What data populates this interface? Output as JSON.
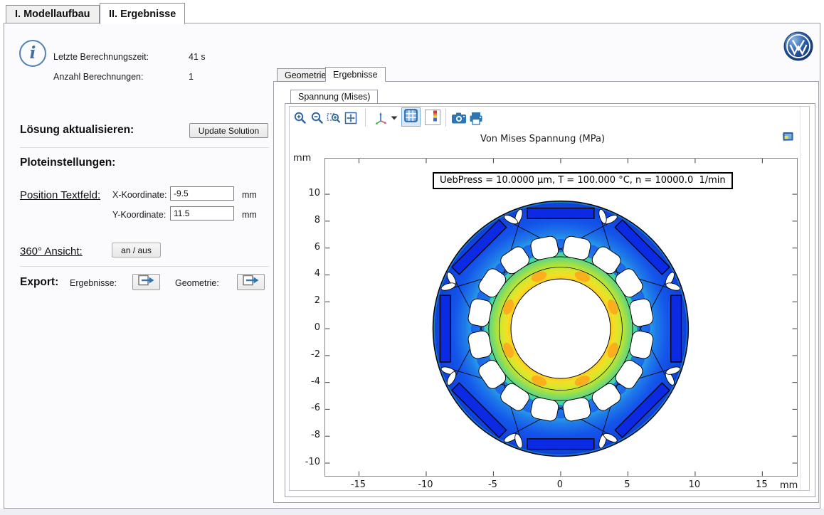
{
  "window": {
    "tabs": [
      {
        "label": "I. Modellaufbau",
        "active": false
      },
      {
        "label": "II. Ergebnisse",
        "active": true
      }
    ],
    "logo_name": "volkswagen-logo"
  },
  "sidebar": {
    "info_rows": [
      {
        "label": "Letzte Berechnungszeit:",
        "value": "41 s"
      },
      {
        "label": "Anzahl Berechnungen:",
        "value": "1"
      }
    ],
    "solution": {
      "heading": "Lösung aktualisieren:",
      "button_label": "Update Solution"
    },
    "plot_settings_heading": "Ploteinstellungen:",
    "textfield_position": {
      "heading": "Position Textfeld:",
      "x_field": {
        "label": "X-Koordinate:",
        "value": "-9.5",
        "unit": "mm"
      },
      "y_field": {
        "label": "Y-Koordinate:",
        "value": "11.5",
        "unit": "mm"
      }
    },
    "view360": {
      "heading": "360° Ansicht:",
      "button_label": "an / aus"
    },
    "export": {
      "heading": "Export:",
      "results_label": "Ergebnisse:",
      "geometry_label": "Geometrie:"
    }
  },
  "results_panel": {
    "tabs": [
      {
        "label": "Geometrie",
        "active": false
      },
      {
        "label": "Ergebnisse",
        "active": true
      }
    ],
    "plot_tabs": [
      {
        "label": "Spannung (Mises)",
        "active": true
      }
    ],
    "toolbar_icons": [
      "zoom-in",
      "zoom-out",
      "zoom-to-box",
      "zoom-extents",
      "view-orientation",
      "orientation-dropdown",
      "grid",
      "color-legend",
      "snapshot-camera",
      "print"
    ]
  },
  "chart_data": {
    "type": "heatmap",
    "title": "Von Mises Spannung (MPa)",
    "annotation": "UebPress = 10.0000 µm, T = 100.000 °C, n = 10000.0  1/min",
    "x_unit": "mm",
    "y_unit": "mm",
    "x_ticks": [
      -15,
      -10,
      -5,
      0,
      5,
      10,
      15
    ],
    "y_ticks": [
      10,
      8,
      6,
      4,
      2,
      0,
      -2,
      -4,
      -6,
      -8,
      -10
    ],
    "xlim": [
      -17.5,
      17.6
    ],
    "ylim": [
      -10.95,
      12.65
    ],
    "description": "FEM von Mises stress field of an 8-pole PM rotor lamination: blue (low stress) outer ring with 8 buried magnet slots and 16 cooling holes, yellow-orange (high stress) ring around the shaft bore",
    "geometry": {
      "outer_radius_mm": 9.5,
      "bore_radius_mm": 3.7,
      "magnet_count": 8,
      "hole_count": 16
    },
    "colors": {
      "magnet": "#0a2ae4",
      "accent_blue": "#2e75b6",
      "colormap_low_to_high": [
        "#0e3fd9",
        "#1455ea",
        "#1f7ae8",
        "#28a2e8",
        "#2dc2e0",
        "#38d2b2",
        "#6cd876",
        "#aee23c",
        "#d8e72c",
        "#f2df25",
        "#ffc51d"
      ]
    }
  }
}
